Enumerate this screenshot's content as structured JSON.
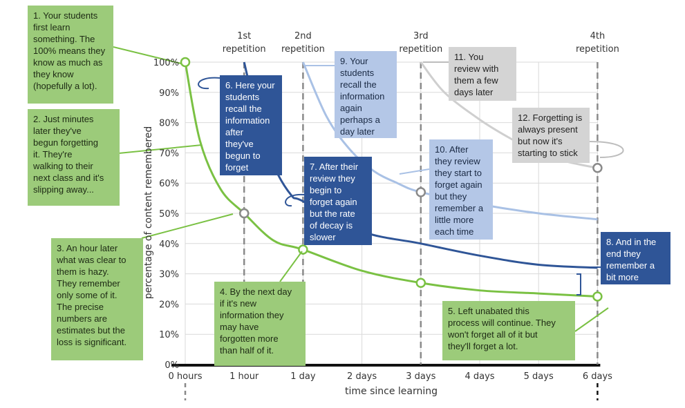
{
  "chart_data": {
    "type": "line",
    "xlabel": "time since learning",
    "ylabel": "percentage of content remembered",
    "x_categories": [
      "0 hours",
      "1 hour",
      "1 day",
      "2 days",
      "3 days",
      "4 days",
      "5 days",
      "6 days"
    ],
    "y_ticks": [
      "0%",
      "10%",
      "20%",
      "30%",
      "40%",
      "50%",
      "60%",
      "70%",
      "80%",
      "90%",
      "100%"
    ],
    "ylim": [
      0,
      100
    ],
    "grid": true,
    "repetitions": [
      {
        "label": "1st repetition",
        "x": 1
      },
      {
        "label": "2nd repetition",
        "x": 2
      },
      {
        "label": "3rd repetition",
        "x": 4
      },
      {
        "label": "4th repetition",
        "x": 7
      }
    ],
    "series": [
      {
        "color": "#7ac143",
        "points": [
          [
            0,
            100
          ],
          [
            0.25,
            74
          ],
          [
            0.6,
            58
          ],
          [
            1,
            50
          ],
          [
            1.5,
            41
          ],
          [
            2,
            38
          ],
          [
            3,
            31
          ],
          [
            4,
            27
          ],
          [
            5,
            24.5
          ],
          [
            6,
            23.5
          ],
          [
            7,
            22.5
          ]
        ],
        "markers": [
          [
            0,
            100
          ],
          [
            1,
            50
          ],
          [
            2,
            38
          ],
          [
            4,
            27
          ],
          [
            7,
            22.5
          ]
        ]
      },
      {
        "color": "#2f5597",
        "points": [
          [
            1,
            100
          ],
          [
            1.2,
            84
          ],
          [
            1.5,
            66
          ],
          [
            1.8,
            56
          ],
          [
            2,
            54
          ],
          [
            3,
            44
          ],
          [
            4,
            40
          ],
          [
            5,
            36
          ],
          [
            6,
            33
          ],
          [
            7,
            32
          ]
        ],
        "markers": []
      },
      {
        "color": "#a9c1e5",
        "points": [
          [
            2,
            100
          ],
          [
            2.4,
            82
          ],
          [
            2.8,
            71
          ],
          [
            3.2,
            64
          ],
          [
            3.6,
            60
          ],
          [
            4,
            57
          ],
          [
            5,
            53
          ],
          [
            6,
            50
          ],
          [
            7,
            48
          ]
        ],
        "markers": [
          [
            4,
            57
          ]
        ]
      },
      {
        "color": "#cfcfcf",
        "points": [
          [
            4,
            100
          ],
          [
            4.4,
            90
          ],
          [
            5,
            81
          ],
          [
            5.5,
            75
          ],
          [
            6,
            70
          ],
          [
            6.5,
            67
          ],
          [
            7,
            65
          ]
        ],
        "markers": [
          [
            7,
            65
          ]
        ]
      }
    ]
  },
  "callouts": [
    {
      "id": "c1",
      "text": "1. Your students\nfirst learn\nsomething. The\n100% means they\nknow as much as\nthey know\n(hopefully a lot)."
    },
    {
      "id": "c2",
      "text": "2. Just minutes\nlater they've\nbegun forgetting\nit. They're\nwalking to their\nnext class and it's\nslipping away..."
    },
    {
      "id": "c3",
      "text": "3. An hour later\nwhat was clear to\nthem is hazy.\nThey remember\nonly some of it.\nThe precise\nnumbers are\nestimates but the\nloss is significant."
    },
    {
      "id": "c4",
      "text": "4. By the next day\nif it's new\ninformation they\nmay have\nforgotten more\nthan half of it."
    },
    {
      "id": "c5",
      "text": "5. Left unabated this\nprocess will continue. They\nwon't forget all of it but\nthey'll forget a lot."
    },
    {
      "id": "c6",
      "text": "6. Here your\nstudents\nrecall the\ninformation\nafter\nthey've\nbegun to\nforget"
    },
    {
      "id": "c7",
      "text": "7. After their\nreview they\nbegin to\nforget again\nbut the rate\nof decay is\nslower"
    },
    {
      "id": "c8",
      "text": "8. And in the\nend they\nremember a\nbit more"
    },
    {
      "id": "c9",
      "text": "9. Your\nstudents\nrecall the\ninformation\nagain\nperhaps a\nday later"
    },
    {
      "id": "c10",
      "text": "10. After\nthey review\nthey start to\nforget again\nbut they\nremember a\nlittle more\neach time"
    },
    {
      "id": "c11",
      "text": "11. You\nreview with\nthem a few\ndays later"
    },
    {
      "id": "c12",
      "text": "12. Forgetting is\nalways present\nbut now it's\nstarting to stick"
    }
  ]
}
